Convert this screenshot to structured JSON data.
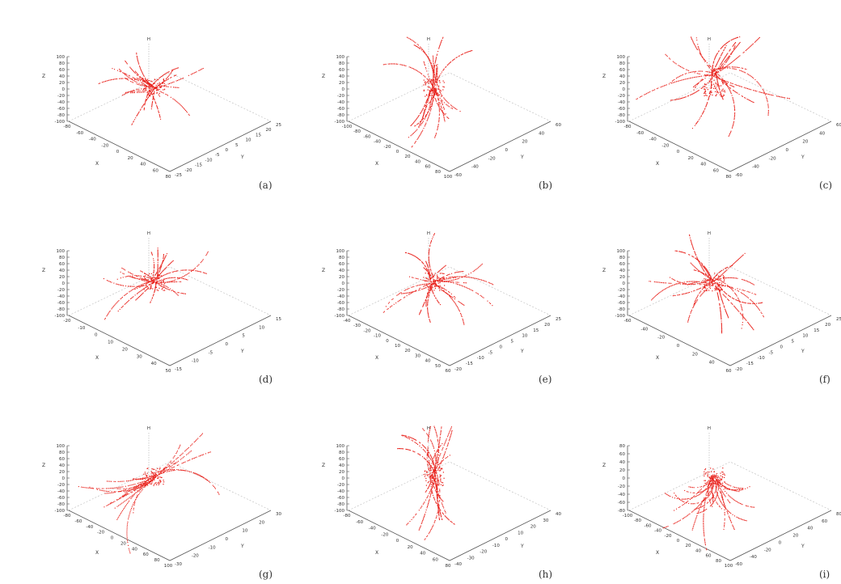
{
  "chart_data": [
    {
      "label": "(a)",
      "type": "scatter",
      "zlabel": "Z",
      "xlabel": "X",
      "ylabel": "Y",
      "h_label": "H",
      "z_ticks": [
        "100",
        "80",
        "60",
        "40",
        "20",
        "0",
        "-20",
        "-40",
        "-60",
        "-80",
        "-100"
      ],
      "x_ticks": [
        "-80",
        "-60",
        "-40",
        "-20",
        "0",
        "20",
        "40",
        "60",
        "80"
      ],
      "y_ticks": [
        "-25",
        "-20",
        "-15",
        "-10",
        "-5",
        "0",
        "5",
        "10",
        "15",
        "20",
        "25"
      ],
      "color": "#e8201a",
      "seed": 11,
      "style": "cluster_mid"
    },
    {
      "label": "(b)",
      "type": "scatter",
      "zlabel": "Z",
      "xlabel": "X",
      "ylabel": "Y",
      "h_label": "H",
      "z_ticks": [
        "100",
        "80",
        "60",
        "40",
        "20",
        "0",
        "-20",
        "-40",
        "-60",
        "-80",
        "-100"
      ],
      "x_ticks": [
        "-100",
        "-80",
        "-60",
        "-40",
        "-20",
        "0",
        "20",
        "40",
        "60",
        "80",
        "100"
      ],
      "y_ticks": [
        "-60",
        "-40",
        "-20",
        "0",
        "20",
        "40",
        "60"
      ],
      "color": "#e8201a",
      "seed": 23,
      "style": "hourglass"
    },
    {
      "label": "(c)",
      "type": "scatter",
      "zlabel": "Z",
      "xlabel": "X",
      "ylabel": "Y",
      "h_label": "H",
      "z_ticks": [
        "100",
        "80",
        "60",
        "40",
        "20",
        "0",
        "-20",
        "-40",
        "-60",
        "-80",
        "-100"
      ],
      "x_ticks": [
        "-80",
        "-60",
        "-40",
        "-20",
        "0",
        "20",
        "40",
        "60",
        "80"
      ],
      "y_ticks": [
        "-60",
        "-40",
        "-20",
        "0",
        "20",
        "40",
        "60"
      ],
      "color": "#e8201a",
      "seed": 37,
      "style": "spread_top"
    },
    {
      "label": "(d)",
      "type": "scatter",
      "zlabel": "Z",
      "xlabel": "X",
      "ylabel": "Y",
      "h_label": "H",
      "z_ticks": [
        "100",
        "80",
        "60",
        "40",
        "20",
        "0",
        "-20",
        "-40",
        "-60",
        "-80",
        "-100"
      ],
      "x_ticks": [
        "-20",
        "-10",
        "0",
        "10",
        "20",
        "30",
        "40",
        "50"
      ],
      "y_ticks": [
        "-15",
        "-10",
        "-5",
        "0",
        "5",
        "10",
        "15"
      ],
      "color": "#e8201a",
      "seed": 41,
      "style": "cluster_top"
    },
    {
      "label": "(e)",
      "type": "scatter",
      "zlabel": "Z",
      "xlabel": "X",
      "ylabel": "Y",
      "h_label": "H",
      "z_ticks": [
        "100",
        "80",
        "60",
        "40",
        "20",
        "0",
        "-20",
        "-40",
        "-60",
        "-80",
        "-100"
      ],
      "x_ticks": [
        "-40",
        "-30",
        "-20",
        "-10",
        "0",
        "10",
        "20",
        "30",
        "40",
        "50",
        "60"
      ],
      "y_ticks": [
        "-20",
        "-15",
        "-10",
        "-5",
        "0",
        "5",
        "10",
        "15",
        "20",
        "25"
      ],
      "color": "#e8201a",
      "seed": 53,
      "style": "cluster_mid"
    },
    {
      "label": "(f)",
      "type": "scatter",
      "zlabel": "Z",
      "xlabel": "X",
      "ylabel": "Y",
      "h_label": "H",
      "z_ticks": [
        "100",
        "80",
        "60",
        "40",
        "20",
        "0",
        "-20",
        "-40",
        "-60",
        "-80",
        "-100"
      ],
      "x_ticks": [
        "-60",
        "-40",
        "-20",
        "0",
        "20",
        "40",
        "60"
      ],
      "y_ticks": [
        "-20",
        "-15",
        "-10",
        "-5",
        "0",
        "5",
        "10",
        "15",
        "20",
        "25"
      ],
      "color": "#e8201a",
      "seed": 67,
      "style": "spread_mid"
    },
    {
      "label": "(g)",
      "type": "scatter",
      "zlabel": "Z",
      "xlabel": "X",
      "ylabel": "Y",
      "h_label": "H",
      "z_ticks": [
        "100",
        "80",
        "60",
        "40",
        "20",
        "0",
        "-20",
        "-40",
        "-60",
        "-80",
        "-100"
      ],
      "x_ticks": [
        "-80",
        "-60",
        "-40",
        "-20",
        "0",
        "20",
        "40",
        "60",
        "80",
        "100"
      ],
      "y_ticks": [
        "-30",
        "-20",
        "-10",
        "0",
        "10",
        "20",
        "30"
      ],
      "color": "#e8201a",
      "seed": 79,
      "style": "diagonal"
    },
    {
      "label": "(h)",
      "type": "scatter",
      "zlabel": "Z",
      "xlabel": "X",
      "ylabel": "Y",
      "h_label": "H",
      "z_ticks": [
        "100",
        "80",
        "60",
        "40",
        "20",
        "0",
        "-20",
        "-40",
        "-60",
        "-80",
        "-100"
      ],
      "x_ticks": [
        "-80",
        "-60",
        "-40",
        "-20",
        "0",
        "20",
        "40",
        "60",
        "80"
      ],
      "y_ticks": [
        "-40",
        "-30",
        "-20",
        "-10",
        "0",
        "10",
        "20",
        "30",
        "40"
      ],
      "color": "#e8201a",
      "seed": 89,
      "style": "hourglass"
    },
    {
      "label": "(i)",
      "type": "scatter",
      "zlabel": "Z",
      "xlabel": "X",
      "ylabel": "Y",
      "h_label": "H",
      "z_ticks": [
        "80",
        "60",
        "40",
        "20",
        "0",
        "-20",
        "-40",
        "-60",
        "-80"
      ],
      "x_ticks": [
        "-100",
        "-80",
        "-60",
        "-40",
        "-20",
        "0",
        "20",
        "40",
        "60",
        "80",
        "100"
      ],
      "y_ticks": [
        "-60",
        "-40",
        "-20",
        "0",
        "20",
        "40",
        "60",
        "80"
      ],
      "color": "#e8201a",
      "seed": 97,
      "style": "vortex"
    }
  ]
}
